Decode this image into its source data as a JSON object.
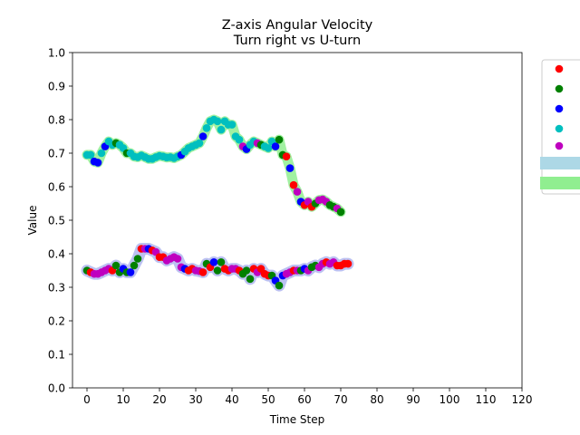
{
  "chart_data": {
    "type": "scatter",
    "title": "Z-axis Angular Velocity",
    "subtitle": "Turn right vs U-turn",
    "xlabel": "Time Step",
    "ylabel": "Value",
    "xlim": [
      -4,
      120
    ],
    "ylim": [
      0.0,
      1.0
    ],
    "xticks": [
      "0",
      "10",
      "20",
      "30",
      "40",
      "50",
      "60",
      "70",
      "80",
      "90",
      "100",
      "110",
      "120"
    ],
    "yticks": [
      "0.0",
      "0.1",
      "0.2",
      "0.3",
      "0.4",
      "0.5",
      "0.6",
      "0.7",
      "0.8",
      "0.9",
      "1.0"
    ],
    "grid": false,
    "legend_position": "right-outside",
    "legend": [
      {
        "label": "",
        "marker": "circle",
        "color": "#ff0000"
      },
      {
        "label": "",
        "marker": "circle",
        "color": "#008000"
      },
      {
        "label": "",
        "marker": "circle",
        "color": "#0000ff"
      },
      {
        "label": "",
        "marker": "circle",
        "color": "#00bfbf"
      },
      {
        "label": "",
        "marker": "circle",
        "color": "#bf00bf"
      },
      {
        "label": "",
        "marker": "band",
        "color": "#add8e6"
      },
      {
        "label": "",
        "marker": "band",
        "color": "#90ee90"
      }
    ],
    "colors": {
      "r": "#ff0000",
      "g": "#008000",
      "b": "#0000ff",
      "c": "#00bfbf",
      "m": "#bf00bf"
    },
    "bands": [
      {
        "color": "#b0b6f0",
        "width": 13,
        "series_index": 1
      },
      {
        "color": "#90ee90",
        "width": 11,
        "series_index": 0
      }
    ],
    "series": [
      {
        "points": [
          [
            0,
            0.695,
            "c"
          ],
          [
            1,
            0.695,
            "c"
          ],
          [
            2,
            0.675,
            "b"
          ],
          [
            3,
            0.672,
            "b"
          ],
          [
            4,
            0.7,
            "c"
          ],
          [
            5,
            0.72,
            "b"
          ],
          [
            6,
            0.735,
            "c"
          ],
          [
            7,
            0.725,
            "c"
          ],
          [
            8,
            0.73,
            "g"
          ],
          [
            9,
            0.725,
            "c"
          ],
          [
            10,
            0.715,
            "c"
          ],
          [
            11,
            0.7,
            "g"
          ],
          [
            12,
            0.7,
            "c"
          ],
          [
            13,
            0.69,
            "c"
          ],
          [
            14,
            0.688,
            "c"
          ],
          [
            15,
            0.693,
            "c"
          ],
          [
            16,
            0.688,
            "c"
          ],
          [
            17,
            0.683,
            "c"
          ],
          [
            18,
            0.683,
            "c"
          ],
          [
            19,
            0.688,
            "c"
          ],
          [
            20,
            0.692,
            "c"
          ],
          [
            21,
            0.69,
            "c"
          ],
          [
            22,
            0.687,
            "c"
          ],
          [
            23,
            0.688,
            "c"
          ],
          [
            24,
            0.685,
            "c"
          ],
          [
            25,
            0.69,
            "c"
          ],
          [
            26,
            0.695,
            "b"
          ],
          [
            27,
            0.705,
            "c"
          ],
          [
            28,
            0.715,
            "c"
          ],
          [
            29,
            0.72,
            "c"
          ],
          [
            30,
            0.725,
            "c"
          ],
          [
            31,
            0.73,
            "c"
          ],
          [
            32,
            0.75,
            "b"
          ],
          [
            33,
            0.775,
            "c"
          ],
          [
            34,
            0.795,
            "c"
          ],
          [
            35,
            0.8,
            "c"
          ],
          [
            36,
            0.795,
            "c"
          ],
          [
            37,
            0.77,
            "c"
          ],
          [
            38,
            0.795,
            "c"
          ],
          [
            39,
            0.785,
            "c"
          ],
          [
            40,
            0.785,
            "c"
          ],
          [
            41,
            0.75,
            "c"
          ],
          [
            42,
            0.74,
            "c"
          ],
          [
            43,
            0.72,
            "m"
          ],
          [
            44,
            0.712,
            "b"
          ],
          [
            45,
            0.725,
            "c"
          ],
          [
            46,
            0.735,
            "c"
          ],
          [
            47,
            0.73,
            "m"
          ],
          [
            48,
            0.725,
            "g"
          ],
          [
            49,
            0.72,
            "c"
          ],
          [
            50,
            0.715,
            "c"
          ],
          [
            51,
            0.735,
            "c"
          ],
          [
            52,
            0.72,
            "b"
          ],
          [
            53,
            0.74,
            "g"
          ],
          [
            54,
            0.695,
            "g"
          ],
          [
            55,
            0.69,
            "r"
          ],
          [
            56,
            0.655,
            "b"
          ],
          [
            57,
            0.605,
            "r"
          ],
          [
            58,
            0.585,
            "m"
          ],
          [
            59,
            0.555,
            "b"
          ],
          [
            60,
            0.545,
            "r"
          ],
          [
            61,
            0.555,
            "m"
          ],
          [
            62,
            0.54,
            "r"
          ],
          [
            63,
            0.55,
            "g"
          ],
          [
            64,
            0.56,
            "m"
          ],
          [
            65,
            0.562,
            "m"
          ],
          [
            66,
            0.555,
            "m"
          ],
          [
            67,
            0.545,
            "g"
          ],
          [
            68,
            0.54,
            "g"
          ],
          [
            69,
            0.535,
            "m"
          ],
          [
            70,
            0.525,
            "g"
          ]
        ]
      },
      {
        "points": [
          [
            0,
            0.35,
            "g"
          ],
          [
            1,
            0.345,
            "r"
          ],
          [
            2,
            0.34,
            "m"
          ],
          [
            3,
            0.34,
            "m"
          ],
          [
            4,
            0.345,
            "m"
          ],
          [
            5,
            0.35,
            "m"
          ],
          [
            6,
            0.355,
            "m"
          ],
          [
            7,
            0.35,
            "r"
          ],
          [
            8,
            0.365,
            "g"
          ],
          [
            9,
            0.345,
            "g"
          ],
          [
            10,
            0.355,
            "b"
          ],
          [
            11,
            0.345,
            "g"
          ],
          [
            12,
            0.345,
            "b"
          ],
          [
            13,
            0.365,
            "g"
          ],
          [
            14,
            0.385,
            "g"
          ],
          [
            15,
            0.415,
            "r"
          ],
          [
            16,
            0.415,
            "m"
          ],
          [
            17,
            0.415,
            "b"
          ],
          [
            18,
            0.41,
            "r"
          ],
          [
            19,
            0.405,
            "m"
          ],
          [
            20,
            0.39,
            "r"
          ],
          [
            21,
            0.39,
            "r"
          ],
          [
            22,
            0.38,
            "m"
          ],
          [
            23,
            0.385,
            "m"
          ],
          [
            24,
            0.39,
            "m"
          ],
          [
            25,
            0.385,
            "m"
          ],
          [
            26,
            0.36,
            "m"
          ],
          [
            27,
            0.355,
            "b"
          ],
          [
            28,
            0.35,
            "r"
          ],
          [
            29,
            0.355,
            "r"
          ],
          [
            30,
            0.35,
            "m"
          ],
          [
            31,
            0.348,
            "m"
          ],
          [
            32,
            0.345,
            "r"
          ],
          [
            33,
            0.37,
            "g"
          ],
          [
            34,
            0.36,
            "r"
          ],
          [
            35,
            0.375,
            "b"
          ],
          [
            36,
            0.35,
            "g"
          ],
          [
            37,
            0.375,
            "g"
          ],
          [
            38,
            0.355,
            "r"
          ],
          [
            39,
            0.35,
            "r"
          ],
          [
            40,
            0.355,
            "m"
          ],
          [
            41,
            0.355,
            "m"
          ],
          [
            42,
            0.35,
            "r"
          ],
          [
            43,
            0.34,
            "g"
          ],
          [
            44,
            0.35,
            "g"
          ],
          [
            45,
            0.325,
            "g"
          ],
          [
            46,
            0.355,
            "r"
          ],
          [
            47,
            0.345,
            "m"
          ],
          [
            48,
            0.355,
            "r"
          ],
          [
            49,
            0.34,
            "r"
          ],
          [
            50,
            0.335,
            "r"
          ],
          [
            51,
            0.335,
            "g"
          ],
          [
            52,
            0.32,
            "b"
          ],
          [
            53,
            0.305,
            "g"
          ],
          [
            54,
            0.335,
            "b"
          ],
          [
            55,
            0.34,
            "m"
          ],
          [
            56,
            0.345,
            "m"
          ],
          [
            57,
            0.35,
            "r"
          ],
          [
            58,
            0.35,
            "m"
          ],
          [
            59,
            0.35,
            "g"
          ],
          [
            60,
            0.355,
            "b"
          ],
          [
            61,
            0.35,
            "m"
          ],
          [
            62,
            0.36,
            "g"
          ],
          [
            63,
            0.365,
            "g"
          ],
          [
            64,
            0.36,
            "m"
          ],
          [
            65,
            0.37,
            "m"
          ],
          [
            66,
            0.375,
            "r"
          ],
          [
            67,
            0.37,
            "m"
          ],
          [
            68,
            0.375,
            "m"
          ],
          [
            69,
            0.365,
            "r"
          ],
          [
            70,
            0.365,
            "r"
          ],
          [
            71,
            0.37,
            "r"
          ],
          [
            72,
            0.37,
            "r"
          ]
        ]
      }
    ]
  }
}
